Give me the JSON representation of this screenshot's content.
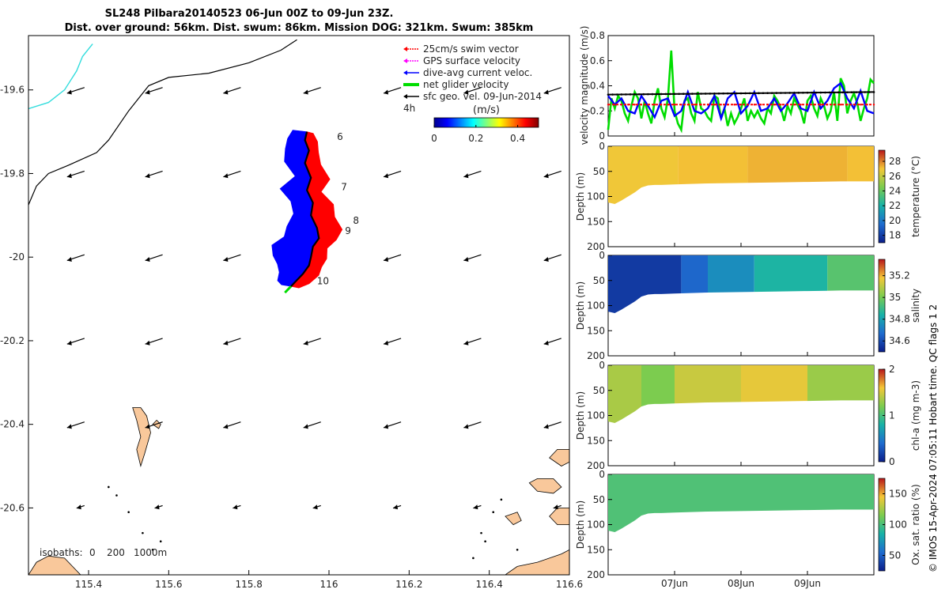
{
  "figure": {
    "title_line1": "SL248 Pilbara20140523 06-Jun 00Z to 09-Jun 23Z.",
    "title_line2": "Dist. over ground: 56km. Dist. swum: 86km. Mission DOG: 321km. Swum: 385km",
    "side_note": "© IMOS 15-Apr-2024 07:05:11 Hobart time. QC flags 1  2",
    "colors": {
      "land": "#f9c89b",
      "land_edge": "#000000",
      "swim": "#ff0000",
      "current": "#0000ff",
      "net": "#00dd00",
      "track": "#000000",
      "isobath_0": "#33dddd",
      "isobath_200": "#000000"
    }
  },
  "map": {
    "lon_ticks": [
      "115.4",
      "115.6",
      "115.8",
      "116",
      "116.2",
      "116.4",
      "116.6"
    ],
    "lat_ticks": [
      "-19.6",
      "-19.8",
      "-20",
      "-20.2",
      "-20.4",
      "-20.6"
    ],
    "legend": {
      "items": [
        {
          "label": "25cm/s swim vector",
          "color": "#ff0000"
        },
        {
          "label": "GPS surface velocity",
          "color": "#ff00ff"
        },
        {
          "label": "dive-avg current veloc.",
          "color": "#0000ff"
        },
        {
          "label": "net glider velocity",
          "color": "#00dd00"
        },
        {
          "label": "sfc geo. vel. 09-Jun-2014",
          "color": "#000000"
        }
      ],
      "time_label": "4h",
      "units": "(m/s)",
      "colorbar_ticks": [
        "0",
        "0.2",
        "0.4"
      ]
    },
    "day_labels": [
      {
        "label": "6",
        "lon": 116.02,
        "lat": -19.72
      },
      {
        "label": "7",
        "lon": 116.03,
        "lat": -19.84
      },
      {
        "label": "8",
        "lon": 116.06,
        "lat": -19.92
      },
      {
        "label": "9",
        "lon": 116.04,
        "lat": -19.945
      },
      {
        "label": "10",
        "lon": 115.97,
        "lat": -20.065
      }
    ],
    "isobaths": {
      "label": "isobaths:",
      "values": [
        "0",
        "200",
        "1000m"
      ]
    }
  },
  "chart_data": [
    {
      "type": "line",
      "title": "",
      "xlabel": "",
      "ylabel": "velocity magnitude (m/s)",
      "ylim": [
        0,
        0.8
      ],
      "yticks": [
        "0",
        "0.2",
        "0.4",
        "0.6",
        "0.8"
      ],
      "xlim_days": [
        0,
        4
      ],
      "series": [
        {
          "name": "net glider velocity",
          "color": "#00dd00",
          "x": [
            0,
            0.05,
            0.1,
            0.15,
            0.2,
            0.25,
            0.3,
            0.35,
            0.4,
            0.45,
            0.5,
            0.55,
            0.6,
            0.65,
            0.7,
            0.75,
            0.8,
            0.85,
            0.9,
            0.95,
            1,
            1.05,
            1.1,
            1.15,
            1.2,
            1.25,
            1.3,
            1.35,
            1.4,
            1.45,
            1.5,
            1.55,
            1.6,
            1.65,
            1.7,
            1.75,
            1.8,
            1.85,
            1.9,
            1.95,
            2,
            2.05,
            2.1,
            2.15,
            2.2,
            2.25,
            2.3,
            2.35,
            2.4,
            2.45,
            2.5,
            2.55,
            2.6,
            2.65,
            2.7,
            2.75,
            2.8,
            2.85,
            2.9,
            2.95,
            3,
            3.05,
            3.1,
            3.15,
            3.2,
            3.25,
            3.3,
            3.35,
            3.4,
            3.45,
            3.5,
            3.55,
            3.6,
            3.65,
            3.7,
            3.75,
            3.8,
            3.85,
            3.9,
            3.95,
            4
          ],
          "values": [
            0.05,
            0.3,
            0.22,
            0.32,
            0.28,
            0.18,
            0.12,
            0.24,
            0.35,
            0.3,
            0.14,
            0.28,
            0.18,
            0.1,
            0.28,
            0.38,
            0.22,
            0.15,
            0.3,
            0.68,
            0.2,
            0.1,
            0.05,
            0.28,
            0.3,
            0.18,
            0.12,
            0.35,
            0.22,
            0.2,
            0.15,
            0.12,
            0.32,
            0.3,
            0.14,
            0.22,
            0.08,
            0.18,
            0.1,
            0.15,
            0.22,
            0.3,
            0.12,
            0.2,
            0.15,
            0.2,
            0.14,
            0.1,
            0.22,
            0.18,
            0.32,
            0.28,
            0.22,
            0.12,
            0.24,
            0.18,
            0.3,
            0.25,
            0.2,
            0.1,
            0.28,
            0.32,
            0.22,
            0.16,
            0.3,
            0.24,
            0.14,
            0.2,
            0.35,
            0.12,
            0.46,
            0.4,
            0.18,
            0.28,
            0.34,
            0.26,
            0.12,
            0.22,
            0.3,
            0.45,
            0.42
          ]
        },
        {
          "name": "dive-avg current veloc.",
          "color": "#0000ff",
          "x": [
            0,
            0.1,
            0.2,
            0.3,
            0.4,
            0.5,
            0.6,
            0.7,
            0.8,
            0.9,
            1,
            1.1,
            1.2,
            1.3,
            1.4,
            1.5,
            1.6,
            1.7,
            1.8,
            1.9,
            2,
            2.1,
            2.2,
            2.3,
            2.4,
            2.5,
            2.6,
            2.7,
            2.8,
            2.9,
            3,
            3.1,
            3.2,
            3.3,
            3.4,
            3.5,
            3.6,
            3.7,
            3.8,
            3.9,
            4
          ],
          "values": [
            0.32,
            0.25,
            0.3,
            0.2,
            0.18,
            0.32,
            0.24,
            0.15,
            0.28,
            0.3,
            0.16,
            0.2,
            0.35,
            0.2,
            0.18,
            0.22,
            0.32,
            0.14,
            0.3,
            0.35,
            0.18,
            0.24,
            0.35,
            0.2,
            0.22,
            0.3,
            0.2,
            0.26,
            0.34,
            0.22,
            0.2,
            0.35,
            0.22,
            0.28,
            0.38,
            0.42,
            0.3,
            0.22,
            0.36,
            0.2,
            0.18
          ]
        },
        {
          "name": "sfc geo. vel.",
          "color": "#000000",
          "x": [
            0,
            4
          ],
          "values": [
            0.33,
            0.35
          ]
        },
        {
          "name": "25cm/s swim vector",
          "color": "#ff0000",
          "x": [
            0,
            4
          ],
          "values": [
            0.25,
            0.25
          ]
        }
      ]
    },
    {
      "type": "heatmap",
      "ylabel": "Depth (m)",
      "ylim": [
        0,
        200
      ],
      "yticks": [
        "0",
        "50",
        "100",
        "150",
        "200"
      ],
      "colorbar_label": "temperature (°C)",
      "colorbar_ticks": [
        "18",
        "20",
        "22",
        "24",
        "26",
        "28"
      ],
      "colorbar_range": [
        17,
        29.5
      ],
      "bottom_depth_profile": {
        "x": [
          0,
          0.1,
          0.2,
          0.3,
          0.4,
          0.5,
          0.6,
          0.7,
          0.8,
          1,
          1.5,
          2,
          2.5,
          3,
          3.5,
          4
        ],
        "depth": [
          112,
          115,
          108,
          100,
          92,
          82,
          78,
          77,
          77,
          76,
          74,
          73,
          72,
          71,
          70,
          70
        ]
      },
      "field": {
        "segments": [
          {
            "x": [
              0,
              1.05
            ],
            "value": 26.9
          },
          {
            "x": [
              1.05,
              2.1
            ],
            "value": 27.1
          },
          {
            "x": [
              2.1,
              3.6
            ],
            "value": 27.3
          },
          {
            "x": [
              3.6,
              4
            ],
            "value": 27.1
          }
        ]
      }
    },
    {
      "type": "heatmap",
      "ylabel": "Depth (m)",
      "ylim": [
        0,
        200
      ],
      "yticks": [
        "0",
        "50",
        "100",
        "150",
        "200"
      ],
      "colorbar_label": "salinity",
      "colorbar_ticks": [
        "34.6",
        "34.8",
        "35",
        "35.2"
      ],
      "colorbar_range": [
        34.5,
        35.35
      ],
      "bottom_depth_profile": {
        "x": [
          0,
          0.1,
          0.2,
          0.3,
          0.4,
          0.5,
          0.6,
          0.7,
          0.8,
          1,
          1.5,
          2,
          2.5,
          3,
          3.5,
          4
        ],
        "depth": [
          112,
          115,
          108,
          100,
          92,
          82,
          78,
          77,
          77,
          76,
          74,
          73,
          72,
          71,
          70,
          70
        ]
      },
      "field": {
        "segments": [
          {
            "x": [
              0,
              1.1
            ],
            "value": 34.56
          },
          {
            "x": [
              1.1,
              1.5
            ],
            "value": 34.66
          },
          {
            "x": [
              1.5,
              2.2
            ],
            "value": 34.75
          },
          {
            "x": [
              2.2,
              3.3
            ],
            "value": 34.85
          },
          {
            "x": [
              3.3,
              4
            ],
            "value": 34.95
          }
        ]
      }
    },
    {
      "type": "heatmap",
      "ylabel": "Depth (m)",
      "ylim": [
        0,
        200
      ],
      "yticks": [
        "0",
        "50",
        "100",
        "150",
        "200"
      ],
      "colorbar_label": "chl-a (mg m-3)",
      "colorbar_ticks": [
        "0",
        "1",
        "2"
      ],
      "colorbar_range": [
        0,
        2
      ],
      "bottom_depth_profile": {
        "x": [
          0,
          0.1,
          0.2,
          0.3,
          0.4,
          0.5,
          0.6,
          0.7,
          0.8,
          1,
          1.5,
          2,
          2.5,
          3,
          3.5,
          4
        ],
        "depth": [
          112,
          115,
          108,
          100,
          92,
          82,
          78,
          77,
          77,
          76,
          74,
          73,
          72,
          71,
          70,
          70
        ]
      },
      "field": {
        "segments": [
          {
            "x": [
              0,
              0.5
            ],
            "value": 1.35
          },
          {
            "x": [
              0.5,
              1.0
            ],
            "value": 1.2
          },
          {
            "x": [
              1.0,
              2.0
            ],
            "value": 1.45
          },
          {
            "x": [
              2.0,
              3.0
            ],
            "value": 1.55
          },
          {
            "x": [
              3.0,
              4
            ],
            "value": 1.3
          }
        ]
      }
    },
    {
      "type": "heatmap",
      "ylabel": "Depth (m)",
      "ylim": [
        0,
        200
      ],
      "yticks": [
        "0",
        "50",
        "100",
        "150",
        "200"
      ],
      "colorbar_label": "Ox. sat. ratio (%)",
      "colorbar_ticks": [
        "50",
        "100",
        "150"
      ],
      "colorbar_range": [
        25,
        175
      ],
      "bottom_depth_profile": {
        "x": [
          0,
          0.1,
          0.2,
          0.3,
          0.4,
          0.5,
          0.6,
          0.7,
          0.8,
          1,
          1.5,
          2,
          2.5,
          3,
          3.5,
          4
        ],
        "depth": [
          112,
          115,
          108,
          100,
          92,
          82,
          78,
          77,
          77,
          76,
          74,
          73,
          72,
          71,
          70,
          70
        ]
      },
      "field": {
        "segments": [
          {
            "x": [
              0,
              4
            ],
            "value": 102
          }
        ]
      },
      "x_tick_labels": [
        "07Jun",
        "08Jun",
        "09Jun"
      ],
      "x_tick_days": [
        1,
        2,
        3
      ]
    }
  ]
}
